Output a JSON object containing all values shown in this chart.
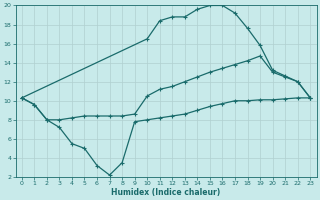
{
  "xlabel": "Humidex (Indice chaleur)",
  "bg_color": "#c8eaea",
  "grid_color": "#b0d0d0",
  "line_color": "#1a6b6b",
  "xlim": [
    -0.5,
    23.5
  ],
  "ylim": [
    2,
    20
  ],
  "xticks": [
    0,
    1,
    2,
    3,
    4,
    5,
    6,
    7,
    8,
    9,
    10,
    11,
    12,
    13,
    14,
    15,
    16,
    17,
    18,
    19,
    20,
    21,
    22,
    23
  ],
  "yticks": [
    2,
    4,
    6,
    8,
    10,
    12,
    14,
    16,
    18,
    20
  ],
  "curve_bottom_x": [
    0,
    1,
    2,
    3,
    4,
    5,
    6,
    7,
    8,
    9,
    10,
    11,
    12,
    13,
    14,
    15,
    16,
    17,
    18,
    19,
    20,
    21,
    22,
    23
  ],
  "curve_bottom_y": [
    10.3,
    9.6,
    8.0,
    7.2,
    5.5,
    5.0,
    3.2,
    2.2,
    3.5,
    7.8,
    8.0,
    8.2,
    8.4,
    8.6,
    9.0,
    9.4,
    9.7,
    10.0,
    10.0,
    10.1,
    10.1,
    10.2,
    10.3,
    10.3
  ],
  "curve_mid_x": [
    0,
    1,
    2,
    3,
    4,
    5,
    6,
    7,
    8,
    9,
    10,
    11,
    12,
    13,
    14,
    15,
    16,
    17,
    18,
    19,
    20,
    21,
    22,
    23
  ],
  "curve_mid_y": [
    10.3,
    9.6,
    8.0,
    8.0,
    8.2,
    8.4,
    8.4,
    8.4,
    8.4,
    8.6,
    10.5,
    11.2,
    11.5,
    12.0,
    12.5,
    13.0,
    13.4,
    13.8,
    14.2,
    14.7,
    13.0,
    12.5,
    12.0,
    10.3
  ],
  "curve_top_x": [
    0,
    10,
    11,
    12,
    13,
    14,
    15,
    16,
    17,
    18,
    19,
    20,
    21,
    22,
    23
  ],
  "curve_top_y": [
    10.3,
    16.5,
    18.4,
    18.8,
    18.8,
    19.6,
    20.0,
    20.0,
    19.2,
    17.6,
    15.8,
    13.2,
    12.6,
    12.0,
    10.3
  ],
  "markersize": 2.5,
  "linewidth": 0.9
}
